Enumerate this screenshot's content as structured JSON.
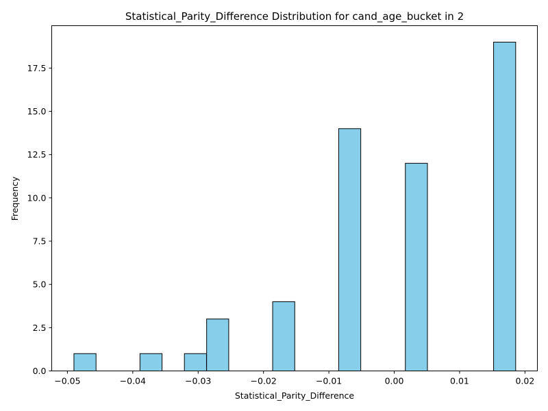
{
  "chart_data": {
    "type": "bar",
    "title": "Statistical_Parity_Difference Distribution for cand_age_bucket in 2",
    "xlabel": "Statistical_Parity_Difference",
    "ylabel": "Frequency",
    "xlim": [
      -0.0524,
      0.0219
    ],
    "ylim": [
      0,
      19.95
    ],
    "x_ticks": [
      -0.05,
      -0.04,
      -0.03,
      -0.02,
      -0.01,
      0.0,
      0.01,
      0.02
    ],
    "x_tick_labels": [
      "−0.05",
      "−0.04",
      "−0.03",
      "−0.02",
      "−0.01",
      "0.00",
      "0.01",
      "0.02"
    ],
    "y_ticks": [
      0,
      2.5,
      5,
      7.5,
      10,
      12.5,
      15,
      17.5
    ],
    "y_tick_labels": [
      "0.0",
      "2.5",
      "5.0",
      "7.5",
      "10.0",
      "12.5",
      "15.0",
      "17.5"
    ],
    "bin_width": 0.00338,
    "bins": [
      {
        "x0": -0.049,
        "count": 1
      },
      {
        "x0": -0.0389,
        "count": 1
      },
      {
        "x0": -0.0321,
        "count": 1
      },
      {
        "x0": -0.0287,
        "count": 3
      },
      {
        "x0": -0.0186,
        "count": 4
      },
      {
        "x0": -0.0085,
        "count": 14
      },
      {
        "x0": 0.0017,
        "count": 12
      },
      {
        "x0": 0.0152,
        "count": 19
      }
    ],
    "bar_color": "#87ceeb",
    "edge_color": "#000000",
    "grid": false
  }
}
